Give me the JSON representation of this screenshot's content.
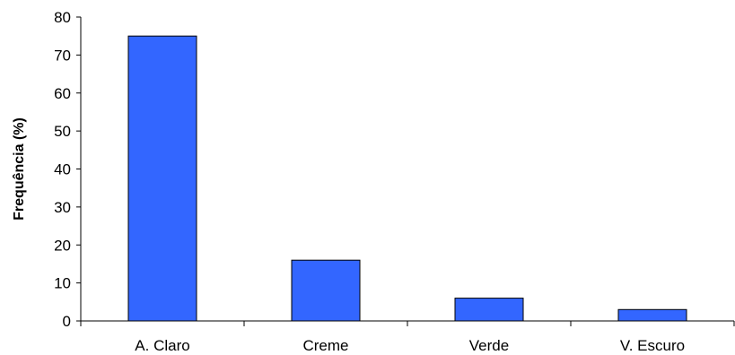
{
  "chart_data": {
    "type": "bar",
    "title": "",
    "xlabel": "",
    "ylabel": "Frequência (%)",
    "categories": [
      "A. Claro",
      "Creme",
      "Verde",
      "V. Escuro"
    ],
    "values": [
      75,
      16,
      6,
      3
    ],
    "ylim": [
      0,
      80
    ],
    "yticks": [
      0,
      10,
      20,
      30,
      40,
      50,
      60,
      70,
      80
    ],
    "grid": false,
    "legend": "none",
    "bar_color": "#3366ff"
  }
}
